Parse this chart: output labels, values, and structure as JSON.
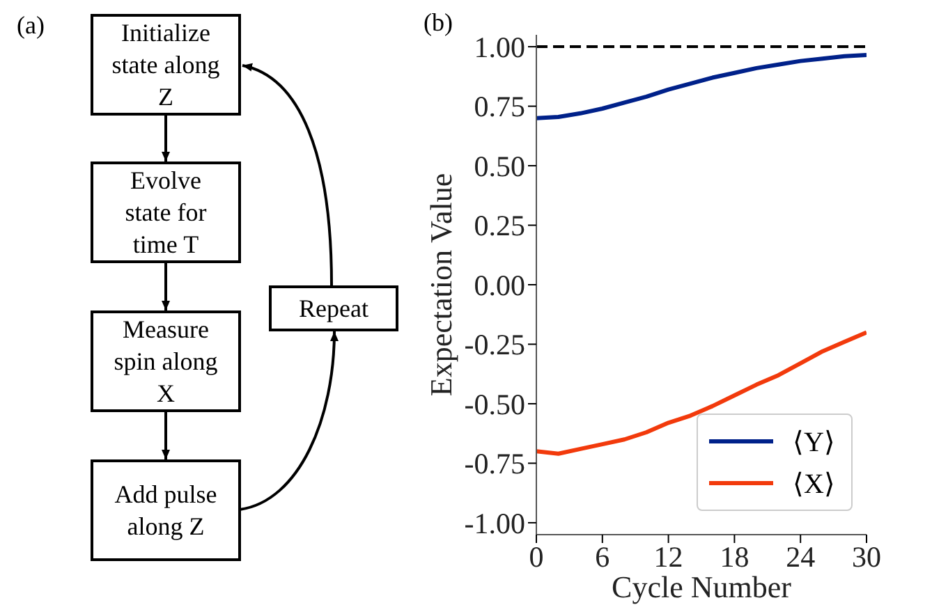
{
  "chart_data": [
    {
      "type": "other",
      "title": "(a)",
      "annotations": [
        "Initialize state along Z",
        "Evolve state for time T",
        "Measure spin along X",
        "Add pulse along Z",
        "Repeat"
      ]
    },
    {
      "type": "line",
      "title": "(b)",
      "xlabel": "Cycle Number",
      "ylabel": "Expectation Value",
      "x": [
        0,
        2,
        4,
        6,
        8,
        10,
        12,
        14,
        16,
        18,
        20,
        22,
        24,
        26,
        28,
        30
      ],
      "xlim": [
        0,
        30
      ],
      "xticks": [
        0,
        6,
        12,
        18,
        24,
        30
      ],
      "ylim": [
        -1.05,
        1.05
      ],
      "yticks": [
        {
          "value": -1.0,
          "label": "-1.00"
        },
        {
          "value": -0.75,
          "label": "-0.75"
        },
        {
          "value": -0.5,
          "label": "-0.50"
        },
        {
          "value": -0.25,
          "label": "-0.25"
        },
        {
          "value": 0.0,
          "label": "0.00"
        },
        {
          "value": 0.25,
          "label": "0.25"
        },
        {
          "value": 0.5,
          "label": "0.50"
        },
        {
          "value": 0.75,
          "label": "0.75"
        },
        {
          "value": 1.0,
          "label": "1.00"
        }
      ],
      "legend": "bottom right",
      "marker": "none",
      "line_style": "solid",
      "ref_lines": [
        {
          "axis": "y",
          "value": 1.0,
          "color": "#000000",
          "line_style": "dashed"
        }
      ],
      "series": [
        {
          "name": "⟨Y⟩",
          "color": "#00218a",
          "values": [
            0.7,
            0.705,
            0.72,
            0.74,
            0.765,
            0.79,
            0.82,
            0.845,
            0.87,
            0.89,
            0.91,
            0.925,
            0.94,
            0.95,
            0.96,
            0.965
          ]
        },
        {
          "name": "⟨X⟩",
          "color": "#f23a0c",
          "values": [
            -0.7,
            -0.71,
            -0.69,
            -0.67,
            -0.65,
            -0.62,
            -0.58,
            -0.55,
            -0.51,
            -0.465,
            -0.42,
            -0.38,
            -0.33,
            -0.28,
            -0.24,
            -0.2
          ]
        }
      ]
    }
  ]
}
